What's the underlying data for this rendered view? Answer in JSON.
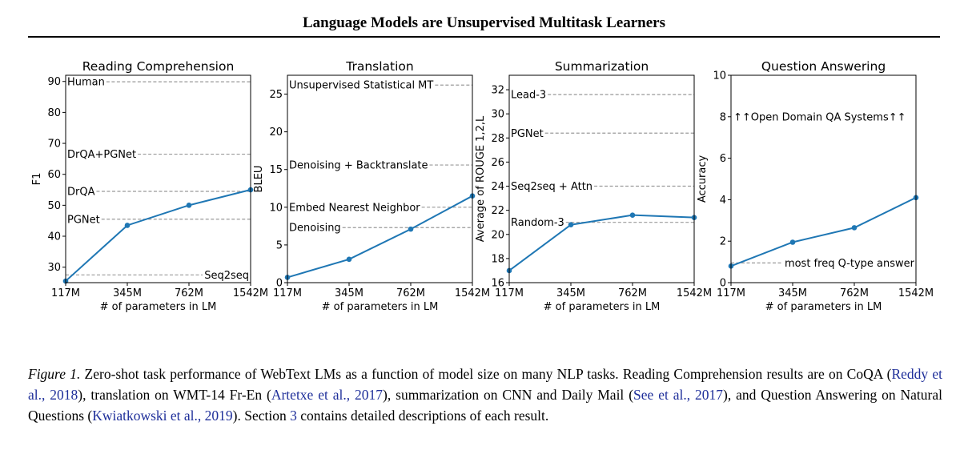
{
  "header": {
    "title": "Language Models are Unsupervised Multitask Learners"
  },
  "line_color": "#1f77b4",
  "ref_line_color": "#999999",
  "chart_data": [
    {
      "type": "line",
      "title": "Reading Comprehension",
      "xlabel": "# of parameters in LM",
      "ylabel": "F1",
      "categories": [
        "117M",
        "345M",
        "762M",
        "1542M"
      ],
      "x": [
        117,
        345,
        762,
        1542
      ],
      "ylim": [
        25,
        92
      ],
      "yticks": [
        30,
        40,
        50,
        60,
        70,
        80,
        90
      ],
      "series": [
        {
          "values": [
            25.5,
            43.5,
            50.0,
            55.0
          ]
        }
      ],
      "references": [
        {
          "label": "Human",
          "value": 89.9,
          "label_side": "left"
        },
        {
          "label": "DrQA+PGNet",
          "value": 66.5,
          "label_side": "left"
        },
        {
          "label": "DrQA",
          "value": 54.5,
          "label_side": "left"
        },
        {
          "label": "PGNet",
          "value": 45.5,
          "label_side": "left"
        },
        {
          "label": "Seq2seq",
          "value": 27.5,
          "label_side": "right"
        }
      ]
    },
    {
      "type": "line",
      "title": "Translation",
      "xlabel": "# of parameters in LM",
      "ylabel": "BLEU",
      "categories": [
        "117M",
        "345M",
        "762M",
        "1542M"
      ],
      "x": [
        117,
        345,
        762,
        1542
      ],
      "ylim": [
        0,
        27.5
      ],
      "yticks": [
        0,
        5,
        10,
        15,
        20,
        25
      ],
      "series": [
        {
          "values": [
            0.7,
            3.1,
            7.1,
            11.5
          ]
        }
      ],
      "references": [
        {
          "label": "Unsupervised Statistical MT",
          "value": 26.2,
          "label_side": "left"
        },
        {
          "label": "Denoising + Backtranslate",
          "value": 15.6,
          "label_side": "left"
        },
        {
          "label": "Embed Nearest Neighbor",
          "value": 10.0,
          "label_side": "left"
        },
        {
          "label": "Denoising",
          "value": 7.3,
          "label_side": "left"
        }
      ]
    },
    {
      "type": "line",
      "title": "Summarization",
      "xlabel": "# of parameters in LM",
      "ylabel": "Average of ROUGE 1,2,L",
      "categories": [
        "117M",
        "345M",
        "762M",
        "1542M"
      ],
      "x": [
        117,
        345,
        762,
        1542
      ],
      "ylim": [
        16,
        33.2
      ],
      "yticks": [
        16,
        18,
        20,
        22,
        24,
        26,
        28,
        30,
        32
      ],
      "series": [
        {
          "values": [
            17.0,
            20.8,
            21.6,
            21.4
          ]
        }
      ],
      "references": [
        {
          "label": "Lead-3",
          "value": 31.6,
          "label_side": "left"
        },
        {
          "label": "PGNet",
          "value": 28.4,
          "label_side": "left"
        },
        {
          "label": "Seq2seq + Attn",
          "value": 24.0,
          "label_side": "left"
        },
        {
          "label": "Random-3",
          "value": 21.0,
          "label_side": "left"
        }
      ]
    },
    {
      "type": "line",
      "title": "Question Answering",
      "xlabel": "# of parameters in LM",
      "ylabel": "Accuracy",
      "categories": [
        "117M",
        "345M",
        "762M",
        "1542M"
      ],
      "x": [
        117,
        345,
        762,
        1542
      ],
      "ylim": [
        0,
        10
      ],
      "yticks": [
        0,
        2,
        4,
        6,
        8,
        10
      ],
      "series": [
        {
          "values": [
            0.8,
            1.95,
            2.65,
            4.1
          ]
        }
      ],
      "references": [
        {
          "label": "most freq Q-type answer",
          "value": 0.95,
          "label_side": "right"
        }
      ],
      "annotation": {
        "label": "↑↑Open Domain QA Systems↑↑",
        "value": 8.0
      }
    }
  ],
  "caption": {
    "fig_label": "Figure 1.",
    "t1": " Zero-shot task performance of WebText LMs as a function of model size on many NLP tasks. Reading Comprehension results are on CoQA (",
    "c1": "Reddy et al., 2018",
    "t2": "), translation on WMT-14 Fr-En (",
    "c2": "Artetxe et al., 2017",
    "t3": "), summarization on CNN and Daily Mail (",
    "c3": "See et al., 2017",
    "t4": "), and Question Answering on Natural Questions (",
    "c4": "Kwiatkowski et al., 2019",
    "t5": "). Section ",
    "c5": "3",
    "t6": " contains detailed descriptions of each result."
  }
}
